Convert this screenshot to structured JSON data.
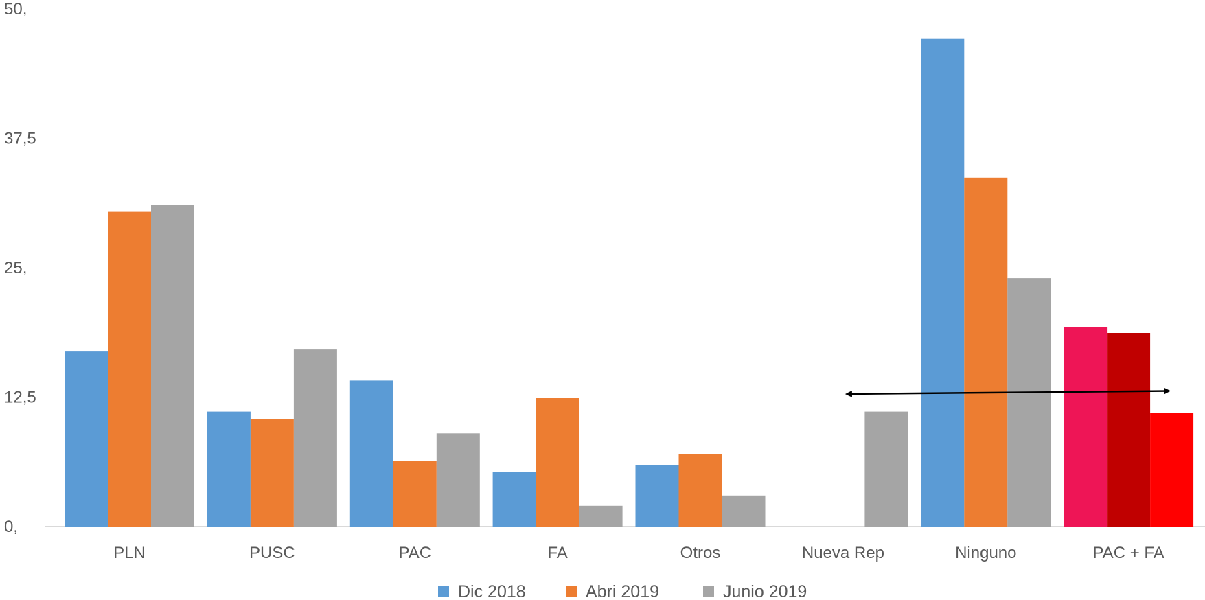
{
  "chart_data": {
    "type": "bar",
    "categories": [
      "PLN",
      "PUSC",
      "PAC",
      "FA",
      "Otros",
      "Nueva Rep",
      "Ninguno",
      "PAC + FA"
    ],
    "series": [
      {
        "name": "Dic 2018",
        "color": "#5B9BD5",
        "values": [
          16.9,
          11.1,
          14.1,
          5.3,
          5.9,
          0,
          47.1,
          19.3
        ]
      },
      {
        "name": "Abri 2019",
        "color": "#ED7D31",
        "values": [
          30.4,
          10.4,
          6.3,
          12.4,
          7.0,
          0,
          33.7,
          18.7
        ]
      },
      {
        "name": "Junio 2019",
        "color": "#A5A5A5",
        "values": [
          31.1,
          17.1,
          9.0,
          2.0,
          3.0,
          11.1,
          24.0,
          11.0
        ]
      }
    ],
    "highlight_colors": {
      "category": "PAC + FA",
      "colors": [
        "#EE1556",
        "#C00000",
        "#FF0000"
      ]
    },
    "ylim": [
      0,
      50
    ],
    "yticks": [
      "0,",
      "12,5",
      "25,",
      "37,5",
      "50,"
    ],
    "annotation": {
      "type": "double-arrow",
      "from_category": "Nueva Rep",
      "to_category": "PAC + FA",
      "y_start": 12.8,
      "y_end": 13.1
    },
    "legend_position": "bottom",
    "grid": false
  }
}
